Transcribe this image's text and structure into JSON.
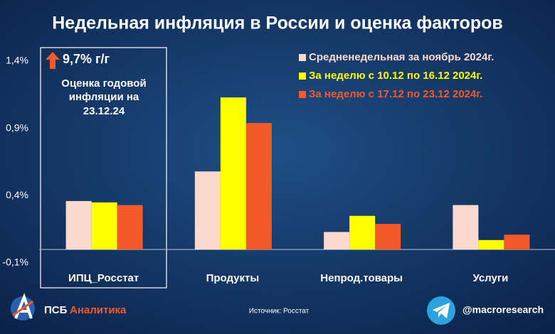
{
  "chart_data": {
    "type": "bar",
    "title": "Недельная инфляция в России и оценка факторов",
    "categories": [
      "ИПЦ_Росстат",
      "Продукты",
      "Непрод.товары",
      "Услуги"
    ],
    "series": [
      {
        "name": "Средненедельная за ноябрь 2024г.",
        "color": "#fbd9cc",
        "values": [
          0.36,
          0.58,
          0.13,
          0.33
        ]
      },
      {
        "name": "За неделю с 10.12 по 16.12 2024г.",
        "color": "#ffff00",
        "values": [
          0.35,
          1.13,
          0.25,
          0.07
        ]
      },
      {
        "name": "За неделю с 17.12 по 23.12 2024г.",
        "color": "#f4592a",
        "values": [
          0.33,
          0.94,
          0.19,
          0.11
        ]
      }
    ],
    "ylim": [
      -0.1,
      1.4
    ],
    "yticks": [
      {
        "value": -0.1,
        "label": "-0,1%"
      },
      {
        "value": 0.4,
        "label": "0,4%"
      },
      {
        "value": 0.9,
        "label": "0,9%"
      },
      {
        "value": 1.4,
        "label": "1,4%"
      }
    ],
    "grid": false,
    "annotation": {
      "headline": "9,7% г/г",
      "lines": [
        "Оценка годовой",
        "инфляции на",
        "23.12.24"
      ]
    },
    "source": "Источник: Росстат",
    "brand": {
      "name": "ПСБ",
      "suffix": "Аналитика"
    },
    "handle": "@macroresearch"
  }
}
